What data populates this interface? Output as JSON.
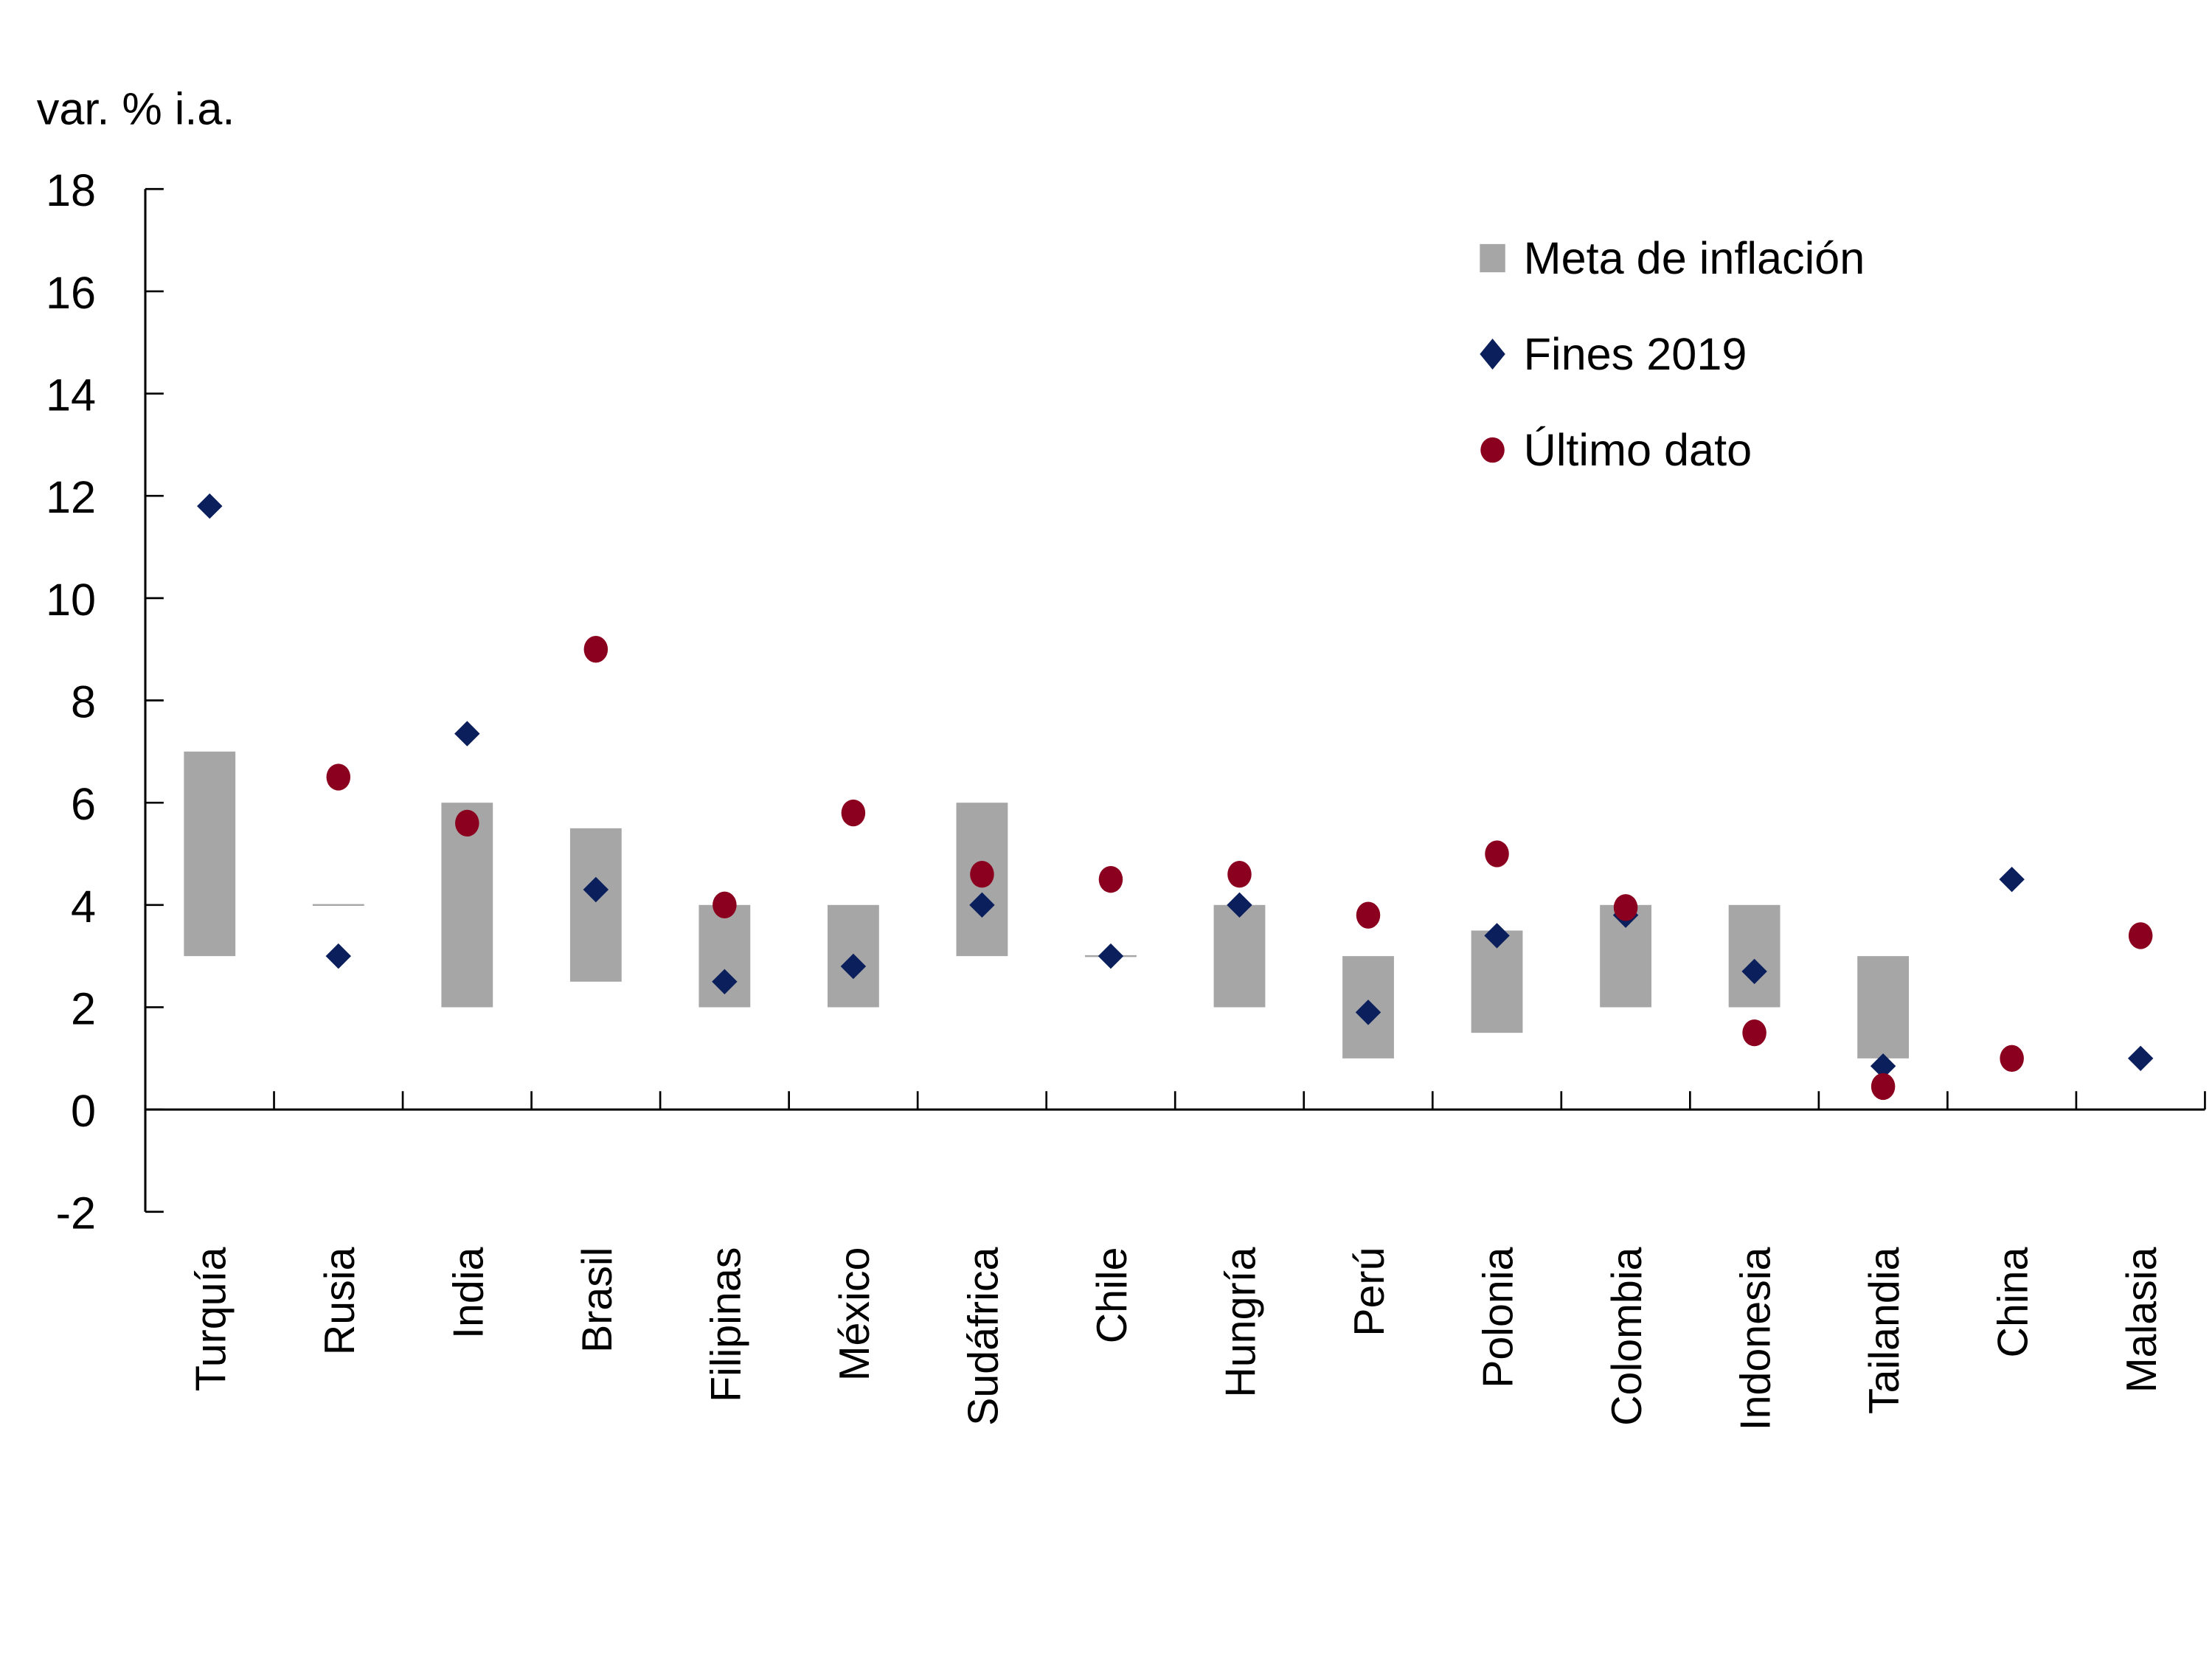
{
  "chart_data": {
    "type": "scatter",
    "title": "",
    "ylabel": "var. % i.a.",
    "xlabel": "",
    "ylim": [
      -2,
      18
    ],
    "yticks": [
      -2,
      0,
      2,
      4,
      6,
      8,
      10,
      12,
      14,
      16,
      18
    ],
    "grid": false,
    "legend_position": "top-right",
    "categories": [
      "Turquía",
      "Rusia",
      "India",
      "Brasil",
      "Filipinas",
      "México",
      "Sudáfrica",
      "Chile",
      "Hungría",
      "Perú",
      "Polonia",
      "Colombia",
      "Indonesia",
      "Tailandia",
      "China",
      "Malasia"
    ],
    "series": [
      {
        "name": "Meta de inflación",
        "kind": "range-bar",
        "color": "#A6A6A6",
        "low": [
          3.0,
          4.0,
          2.0,
          2.5,
          2.0,
          2.0,
          3.0,
          3.0,
          2.0,
          1.0,
          1.5,
          2.0,
          2.0,
          1.0,
          null,
          null
        ],
        "high": [
          7.0,
          4.0,
          6.0,
          5.5,
          4.0,
          4.0,
          6.0,
          3.0,
          4.0,
          3.0,
          3.5,
          4.0,
          4.0,
          3.0,
          null,
          null
        ]
      },
      {
        "name": "Fines 2019",
        "kind": "diamond",
        "color": "#0A1F5C",
        "values": [
          11.8,
          3.0,
          7.35,
          4.3,
          2.5,
          2.8,
          4.0,
          3.0,
          4.0,
          1.9,
          3.4,
          3.8,
          2.7,
          0.85,
          4.5,
          1.0
        ]
      },
      {
        "name": "Último dato",
        "kind": "circle",
        "color": "#8B001E",
        "values": [
          null,
          6.5,
          5.6,
          9.0,
          4.0,
          5.8,
          4.6,
          4.5,
          4.6,
          3.8,
          5.0,
          3.95,
          1.5,
          0.45,
          1.0,
          3.4
        ]
      }
    ]
  }
}
